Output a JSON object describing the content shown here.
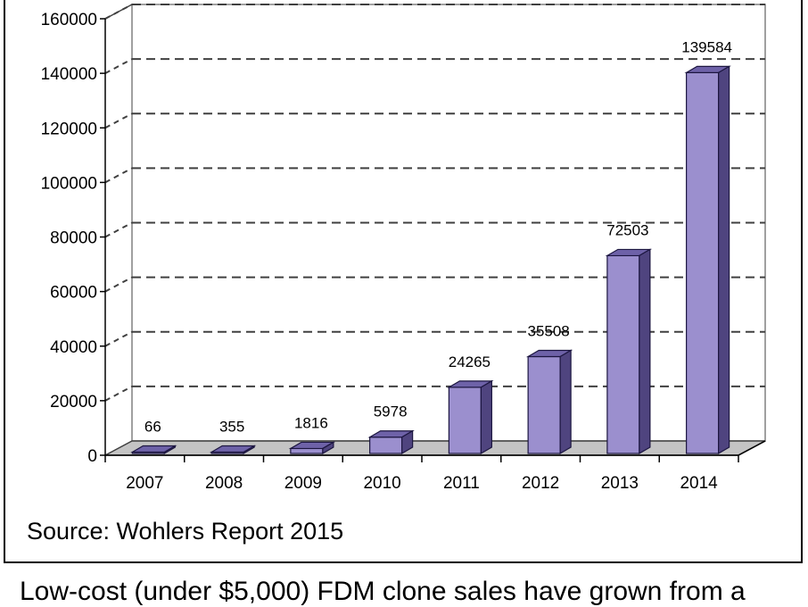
{
  "chart_data": {
    "type": "bar",
    "style": "3d",
    "categories": [
      "2007",
      "2008",
      "2009",
      "2010",
      "2011",
      "2012",
      "2013",
      "2014"
    ],
    "values": [
      66,
      355,
      1816,
      5978,
      24265,
      35508,
      72503,
      139584
    ],
    "data_labels": [
      "66",
      "355",
      "1816",
      "5978",
      "24265",
      "35508",
      "72503",
      "139584"
    ],
    "y_ticks": [
      "0",
      "20000",
      "40000",
      "60000",
      "80000",
      "100000",
      "120000",
      "140000",
      "160000"
    ],
    "ylim": [
      0,
      160000
    ],
    "grid": "dashed horizontal",
    "colors": {
      "bar_front": "#9b8fce",
      "bar_top": "#6e62a8",
      "bar_side": "#4f447f",
      "floor": "#c4c4c4",
      "wall": "#ffffff",
      "grid": "#404040"
    }
  },
  "source_note": "Source: Wohlers Report 2015",
  "caption": "Low-cost (under $5,000) FDM clone sales have grown from a"
}
